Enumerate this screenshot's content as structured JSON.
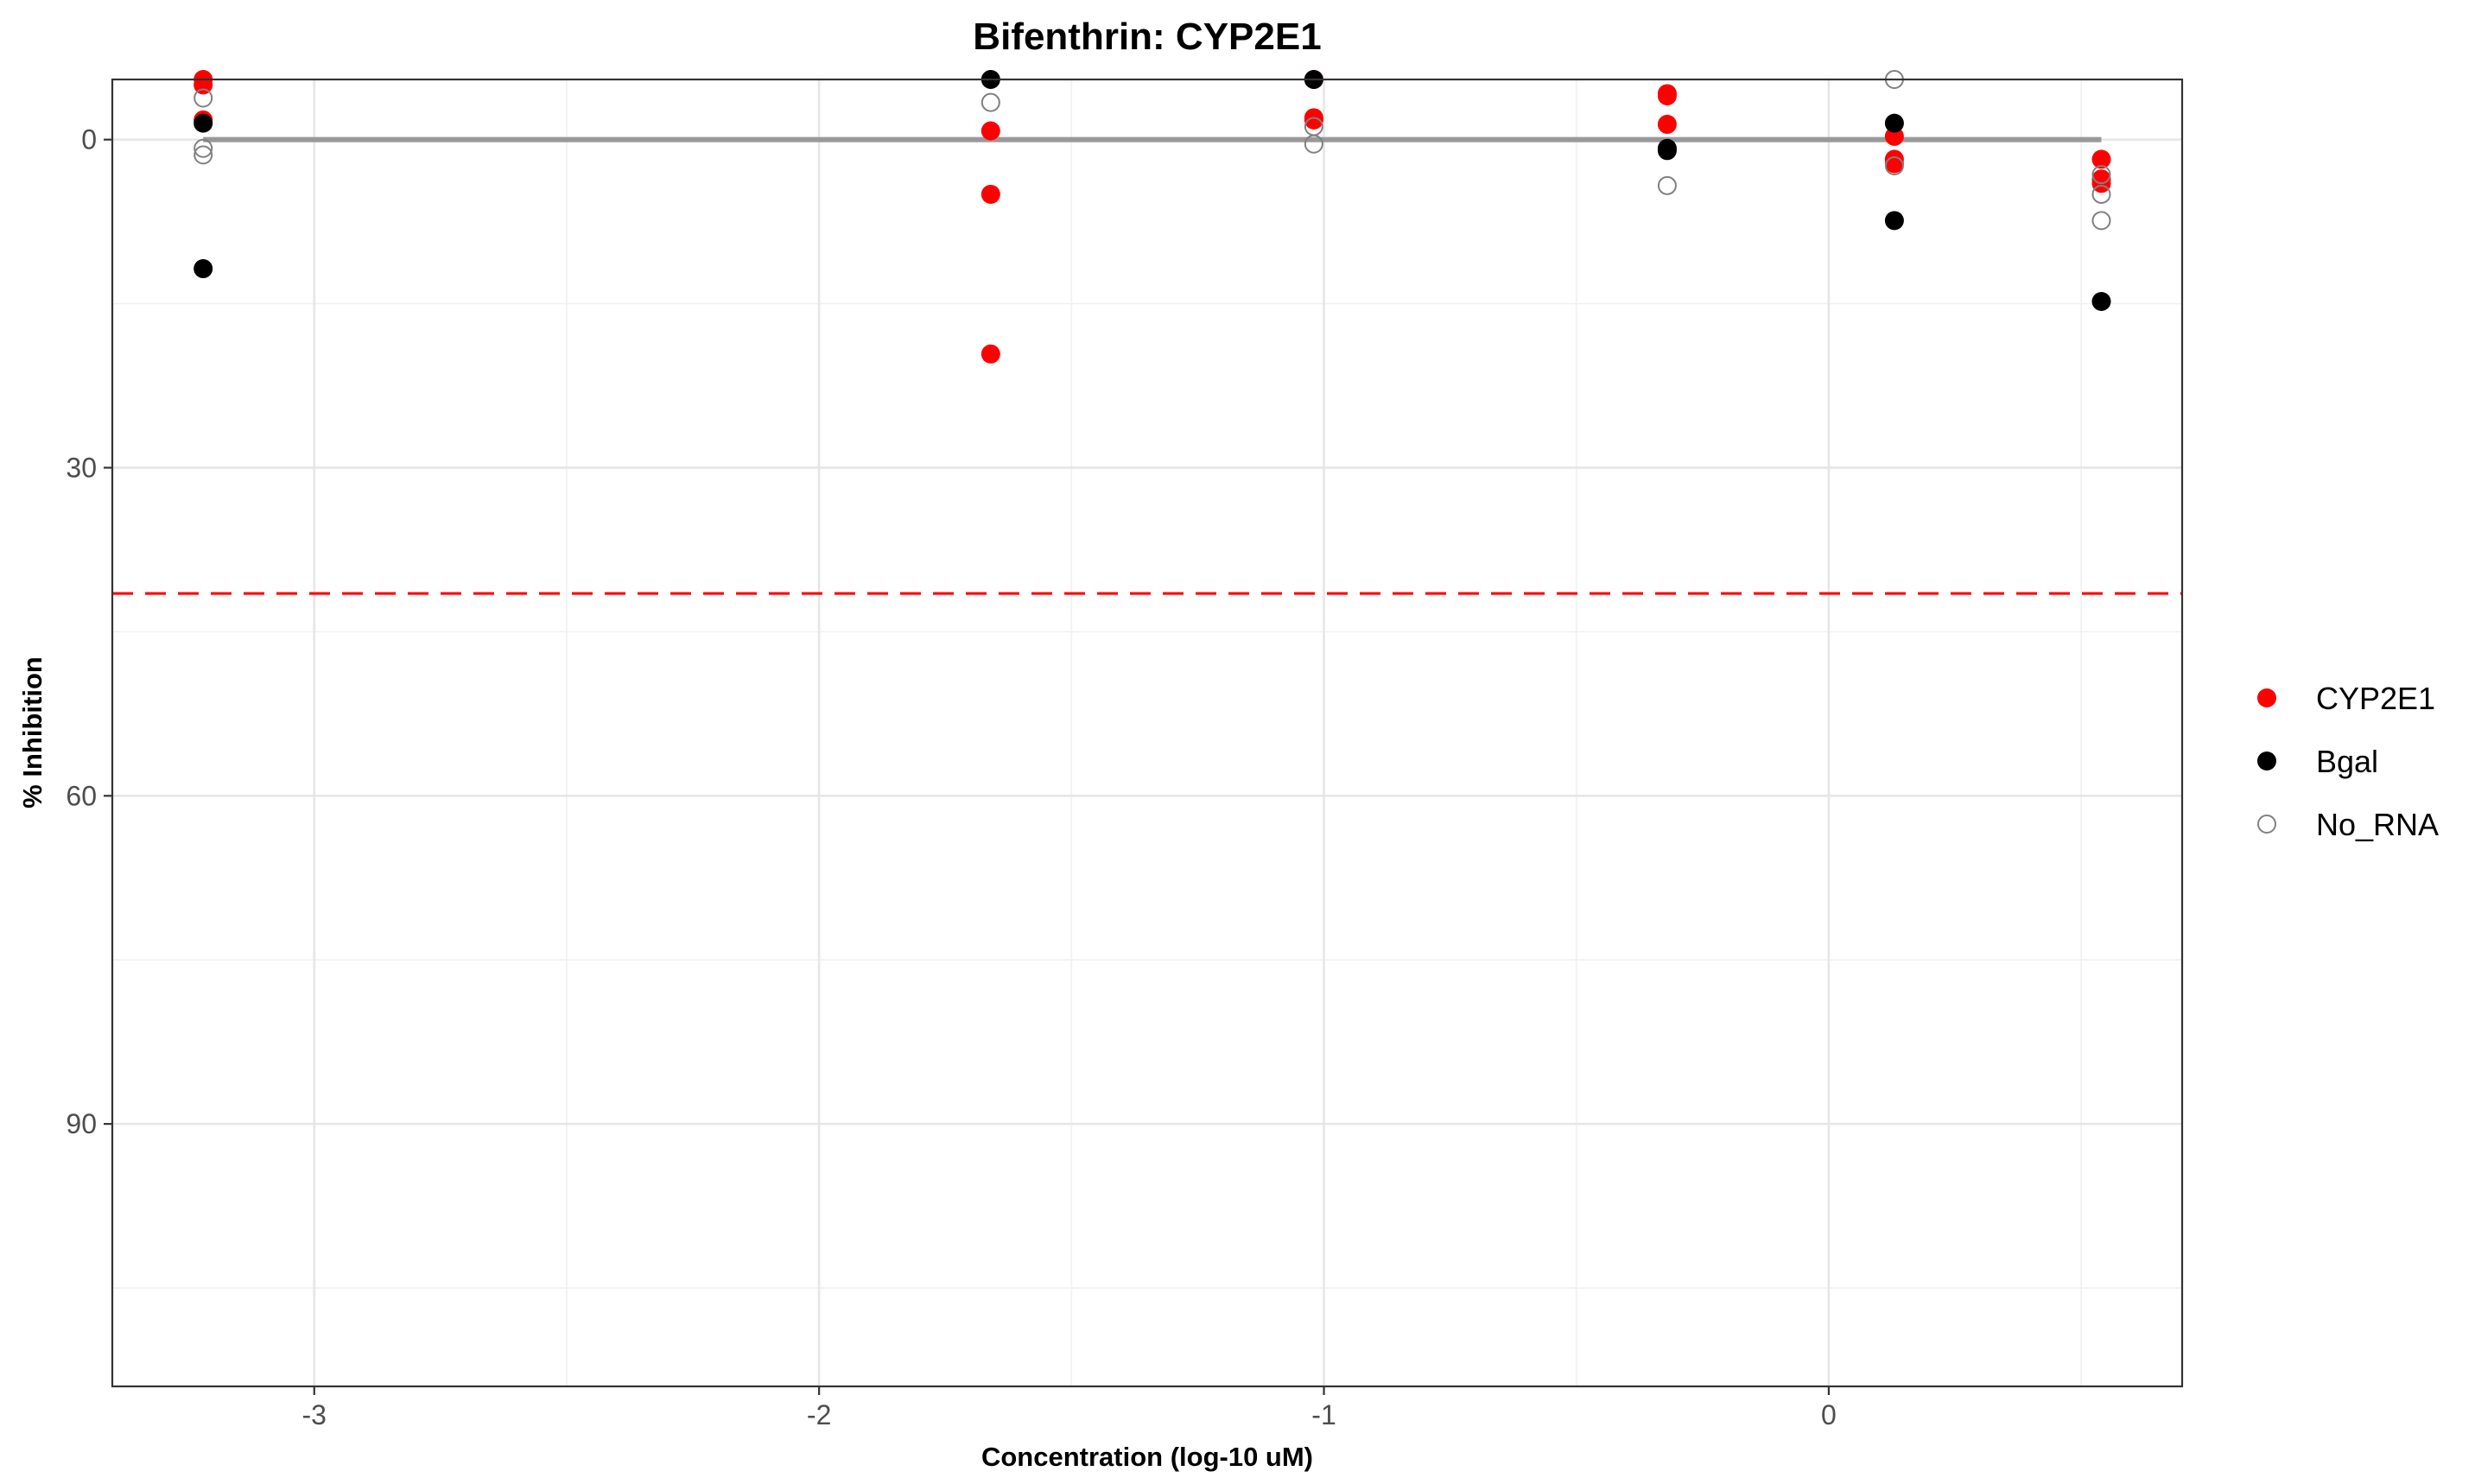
{
  "chart_data": {
    "type": "scatter",
    "title": "Bifenthrin: CYP2E1",
    "xlabel": "Concentration (log-10 uM)",
    "ylabel": "% Inhibition",
    "xlim": [
      -3.4,
      0.7
    ],
    "ylim": [
      -5.5,
      114
    ],
    "y_reversed": true,
    "x_ticks": [
      -3,
      -2,
      -1,
      0
    ],
    "x_tick_labels": [
      "-3",
      "-2",
      "-1",
      "0"
    ],
    "y_ticks": [
      0,
      30,
      60,
      90
    ],
    "y_tick_labels": [
      "0",
      "30",
      "60",
      "90"
    ],
    "grid": true,
    "legend_position": "right",
    "series": [
      {
        "name": "CYP2E1",
        "marker": "filled-circle",
        "color": "#ff0000",
        "points": [
          {
            "x": -3.22,
            "y": -5.5
          },
          {
            "x": -3.22,
            "y": -5.0
          },
          {
            "x": -3.22,
            "y": -1.8
          },
          {
            "x": -1.66,
            "y": -0.8
          },
          {
            "x": -1.66,
            "y": 5.0
          },
          {
            "x": -1.66,
            "y": 19.6
          },
          {
            "x": -1.02,
            "y": -5.5
          },
          {
            "x": -1.02,
            "y": -2.0
          },
          {
            "x": -1.02,
            "y": -1.8
          },
          {
            "x": -0.32,
            "y": -4.2
          },
          {
            "x": -0.32,
            "y": -4.0
          },
          {
            "x": -0.32,
            "y": -1.4
          },
          {
            "x": 0.13,
            "y": -0.3
          },
          {
            "x": 0.13,
            "y": 1.8
          },
          {
            "x": 0.13,
            "y": 2.2
          },
          {
            "x": 0.54,
            "y": 1.8
          },
          {
            "x": 0.54,
            "y": 3.6
          },
          {
            "x": 0.54,
            "y": 4.0
          }
        ]
      },
      {
        "name": "Bgal",
        "marker": "filled-circle",
        "color": "#000000",
        "points": [
          {
            "x": -3.22,
            "y": -1.5
          },
          {
            "x": -3.22,
            "y": 11.8
          },
          {
            "x": -1.66,
            "y": -5.5
          },
          {
            "x": -1.02,
            "y": -5.5
          },
          {
            "x": -0.32,
            "y": 0.8
          },
          {
            "x": -0.32,
            "y": 1.0
          },
          {
            "x": 0.13,
            "y": -1.5
          },
          {
            "x": 0.13,
            "y": 7.4
          },
          {
            "x": 0.54,
            "y": 14.8
          }
        ]
      },
      {
        "name": "No_RNA",
        "marker": "open-circle",
        "color": "#808080",
        "points": [
          {
            "x": -3.22,
            "y": -3.8
          },
          {
            "x": -3.22,
            "y": 0.8
          },
          {
            "x": -3.22,
            "y": 1.4
          },
          {
            "x": -1.66,
            "y": -3.4
          },
          {
            "x": -1.02,
            "y": -1.2
          },
          {
            "x": -1.02,
            "y": 0.4
          },
          {
            "x": -0.32,
            "y": 4.2
          },
          {
            "x": 0.13,
            "y": -5.5
          },
          {
            "x": 0.13,
            "y": 2.4
          },
          {
            "x": 0.54,
            "y": 3.2
          },
          {
            "x": 0.54,
            "y": 5.0
          },
          {
            "x": 0.54,
            "y": 7.4
          }
        ]
      }
    ],
    "reference_lines": [
      {
        "kind": "fit",
        "style": "solid",
        "color": "#999999",
        "x_start": -3.22,
        "x_end": 0.54,
        "y": 0
      },
      {
        "kind": "threshold",
        "style": "dashed",
        "color": "#ff0000",
        "y": 41.5
      }
    ]
  }
}
